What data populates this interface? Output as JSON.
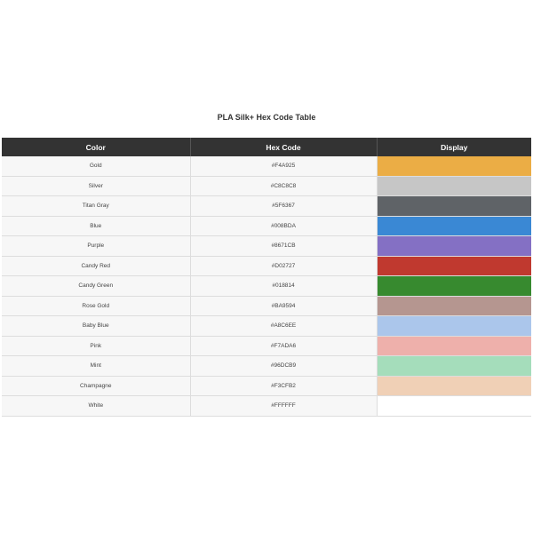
{
  "title": "PLA Silk+ Hex Code Table",
  "headers": [
    "Color",
    "Hex Code",
    "Display"
  ],
  "rows": [
    {
      "name": "Gold",
      "hex": "#F4A925",
      "display": "#EBAD45"
    },
    {
      "name": "Silver",
      "hex": "#C8C8C8",
      "display": "#C6C6C6"
    },
    {
      "name": "Titan Gray",
      "hex": "#5F6367",
      "display": "#5F6367"
    },
    {
      "name": "Blue",
      "hex": "#008BDA",
      "display": "#3A88D4"
    },
    {
      "name": "Purple",
      "hex": "#8671CB",
      "display": "#8470C4"
    },
    {
      "name": "Candy Red",
      "hex": "#D02727",
      "display": "#C0392F"
    },
    {
      "name": "Candy Green",
      "hex": "#018814",
      "display": "#378A2F"
    },
    {
      "name": "Rose Gold",
      "hex": "#BA9594",
      "display": "#B59690"
    },
    {
      "name": "Baby Blue",
      "hex": "#A8C6EE",
      "display": "#ABC6EB"
    },
    {
      "name": "Pink",
      "hex": "#F7ADA6",
      "display": "#EEB0AB"
    },
    {
      "name": "Mint",
      "hex": "#96DCB9",
      "display": "#A5DDBB"
    },
    {
      "name": "Champagne",
      "hex": "#F3CFB2",
      "display": "#F0D0B6"
    },
    {
      "name": "White",
      "hex": "#FFFFFF",
      "display": "#FFFFFF"
    }
  ]
}
